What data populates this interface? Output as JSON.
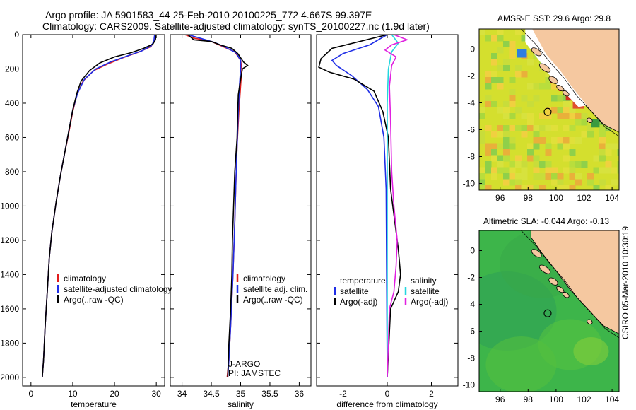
{
  "header": {
    "line1": "Argo profile: JA 5901583_44 25-Feb-2010 20100225_772 4.667S 99.397E",
    "line2": "Climatology: CARS2009. Satellite-adjusted climatology: synTS_20100227.nc (1.9d later)"
  },
  "stamp": "CSIRO 05-Mar-2010 10:30:19",
  "colors": {
    "clim": "#e11b1b",
    "sat": "#1f2ee6",
    "argo": "#000000",
    "sal_sat": "#23d6df",
    "sal_argo": "#e021e0",
    "land": "#f5c8a0",
    "sst_base": "#d4df2e",
    "sla_base": "#3db54a"
  },
  "chart_data": [
    {
      "type": "line",
      "id": "temperature",
      "xlabel": "temperature",
      "ylabel": "",
      "xlim": [
        -2,
        32
      ],
      "ylim": [
        0,
        2050
      ],
      "y_reversed": true,
      "xticks": [
        0,
        10,
        20,
        30
      ],
      "yticks": [
        0,
        200,
        400,
        600,
        800,
        1000,
        1200,
        1400,
        1600,
        1800,
        2000
      ],
      "legend": [
        "climatology",
        "satellite-adjusted climatology",
        "Argo(..raw -QC)"
      ],
      "series": [
        {
          "name": "climatology",
          "color": "clim",
          "points": [
            [
              29.8,
              0
            ],
            [
              29.5,
              40
            ],
            [
              28.7,
              70
            ],
            [
              26,
              100
            ],
            [
              22,
              135
            ],
            [
              18.5,
              170
            ],
            [
              15,
              210
            ],
            [
              12.5,
              270
            ],
            [
              11,
              350
            ],
            [
              10,
              450
            ],
            [
              9,
              580
            ],
            [
              8,
              700
            ],
            [
              7,
              830
            ],
            [
              6,
              980
            ],
            [
              5,
              1150
            ],
            [
              4.4,
              1300
            ],
            [
              3.9,
              1500
            ],
            [
              3.4,
              1700
            ],
            [
              3.0,
              1900
            ],
            [
              2.7,
              2000
            ]
          ]
        },
        {
          "name": "satellite-adjusted climatology",
          "color": "sat",
          "points": [
            [
              29.6,
              0
            ],
            [
              29.4,
              40
            ],
            [
              28.8,
              65
            ],
            [
              26.5,
              95
            ],
            [
              23,
              125
            ],
            [
              19,
              160
            ],
            [
              15.5,
              200
            ],
            [
              12.8,
              260
            ],
            [
              11.2,
              340
            ],
            [
              10,
              440
            ],
            [
              9,
              570
            ],
            [
              8,
              700
            ],
            [
              7,
              830
            ],
            [
              6,
              980
            ],
            [
              5,
              1150
            ],
            [
              4.4,
              1300
            ],
            [
              3.9,
              1500
            ],
            [
              3.4,
              1700
            ],
            [
              3.0,
              1900
            ],
            [
              2.7,
              2000
            ]
          ]
        },
        {
          "name": "Argo(..raw -QC)",
          "color": "argo",
          "points": [
            [
              29.9,
              5
            ],
            [
              29.8,
              30
            ],
            [
              29.2,
              55
            ],
            [
              27,
              80
            ],
            [
              24,
              105
            ],
            [
              20,
              130
            ],
            [
              16.5,
              165
            ],
            [
              14,
              210
            ],
            [
              12,
              270
            ],
            [
              11,
              340
            ],
            [
              10,
              440
            ],
            [
              9,
              570
            ],
            [
              8,
              700
            ],
            [
              7,
              830
            ],
            [
              6,
              980
            ],
            [
              5,
              1150
            ],
            [
              4.4,
              1300
            ],
            [
              3.9,
              1500
            ],
            [
              3.4,
              1700
            ],
            [
              3.0,
              1900
            ],
            [
              2.7,
              2000
            ]
          ]
        }
      ]
    },
    {
      "type": "line",
      "id": "salinity",
      "xlabel": "salinity",
      "xlim": [
        33.8,
        36.2
      ],
      "ylim": [
        0,
        2050
      ],
      "y_reversed": true,
      "xticks": [
        34,
        34.5,
        35,
        35.5,
        36
      ],
      "legend": [
        "climatology",
        "satellite adj. clim.",
        "Argo(..raw -QC)"
      ],
      "annotations": [
        "J-ARGO",
        "PI: JAMSTEC"
      ],
      "series": [
        {
          "name": "climatology",
          "color": "clim",
          "points": [
            [
              34.05,
              0
            ],
            [
              34.2,
              20
            ],
            [
              34.5,
              40
            ],
            [
              34.7,
              70
            ],
            [
              34.9,
              100
            ],
            [
              35.0,
              150
            ],
            [
              35.02,
              200
            ],
            [
              35.0,
              300
            ],
            [
              34.97,
              450
            ],
            [
              34.94,
              650
            ],
            [
              34.92,
              850
            ],
            [
              34.9,
              1100
            ],
            [
              34.87,
              1400
            ],
            [
              34.83,
              1700
            ],
            [
              34.8,
              1900
            ],
            [
              34.77,
              2000
            ]
          ]
        },
        {
          "name": "satellite adj. clim.",
          "color": "sat",
          "points": [
            [
              34.1,
              0
            ],
            [
              34.3,
              20
            ],
            [
              34.55,
              45
            ],
            [
              34.75,
              75
            ],
            [
              34.92,
              105
            ],
            [
              35.0,
              150
            ],
            [
              35.0,
              200
            ],
            [
              34.98,
              300
            ],
            [
              34.96,
              450
            ],
            [
              34.94,
              650
            ],
            [
              34.92,
              850
            ],
            [
              34.9,
              1100
            ],
            [
              34.87,
              1400
            ],
            [
              34.83,
              1700
            ],
            [
              34.8,
              1900
            ],
            [
              34.78,
              2000
            ]
          ]
        },
        {
          "name": "Argo(..raw -QC)",
          "color": "argo",
          "points": [
            [
              34.1,
              0
            ],
            [
              34.2,
              30
            ],
            [
              34.5,
              40
            ],
            [
              34.65,
              60
            ],
            [
              34.85,
              80
            ],
            [
              34.95,
              110
            ],
            [
              35.05,
              160
            ],
            [
              35.12,
              180
            ],
            [
              35.03,
              200
            ],
            [
              35.0,
              260
            ],
            [
              34.96,
              350
            ],
            [
              34.95,
              450
            ],
            [
              34.94,
              600
            ],
            [
              34.9,
              800
            ],
            [
              34.88,
              1000
            ],
            [
              34.86,
              1200
            ],
            [
              34.85,
              1400
            ],
            [
              34.83,
              1600
            ],
            [
              34.8,
              1800
            ],
            [
              34.78,
              2000
            ]
          ]
        }
      ]
    },
    {
      "type": "line",
      "id": "difference",
      "xlabel": "difference from climatology",
      "xlim": [
        -3.2,
        3.2
      ],
      "ylim": [
        0,
        2050
      ],
      "y_reversed": true,
      "xticks": [
        -2,
        0,
        2
      ],
      "legend_left": [
        "temperature",
        "satellite",
        "Argo(-adj)"
      ],
      "legend_right": [
        "salinity",
        "satellite",
        "Argo(-adj)"
      ],
      "series": [
        {
          "name": "temperature satellite",
          "color": "sat",
          "points": [
            [
              0,
              0
            ],
            [
              -0.8,
              60
            ],
            [
              -2.0,
              110
            ],
            [
              -2.5,
              150
            ],
            [
              -2.3,
              180
            ],
            [
              -1.6,
              240
            ],
            [
              -0.9,
              320
            ],
            [
              -0.4,
              420
            ],
            [
              -0.15,
              600
            ],
            [
              -0.05,
              900
            ],
            [
              0,
              2000
            ]
          ]
        },
        {
          "name": "temperature Argo(-adj)",
          "color": "argo",
          "points": [
            [
              0,
              0
            ],
            [
              -2.5,
              80
            ],
            [
              -3.0,
              140
            ],
            [
              -3.1,
              190
            ],
            [
              -2.6,
              220
            ],
            [
              -1.5,
              260
            ],
            [
              -0.6,
              330
            ],
            [
              -0.2,
              450
            ],
            [
              0.05,
              600
            ],
            [
              0.15,
              900
            ],
            [
              0.35,
              1100
            ],
            [
              0.5,
              1250
            ],
            [
              0.6,
              1400
            ],
            [
              0.5,
              1500
            ],
            [
              0.15,
              1600
            ],
            [
              0,
              2000
            ]
          ]
        },
        {
          "name": "salinity satellite",
          "color": "sal_sat",
          "points": [
            [
              0.2,
              0
            ],
            [
              0.5,
              50
            ],
            [
              0.2,
              100
            ],
            [
              0.05,
              200
            ],
            [
              0,
              400
            ],
            [
              0,
              2000
            ]
          ]
        },
        {
          "name": "salinity Argo(-adj)",
          "color": "sal_argo",
          "points": [
            [
              0.3,
              0
            ],
            [
              0.9,
              30
            ],
            [
              0.2,
              60
            ],
            [
              -0.1,
              90
            ],
            [
              0.4,
              130
            ],
            [
              0.2,
              180
            ],
            [
              0.1,
              300
            ],
            [
              0.15,
              500
            ],
            [
              0.2,
              800
            ],
            [
              0.3,
              1000
            ],
            [
              0.45,
              1200
            ],
            [
              0.4,
              1350
            ],
            [
              0.3,
              1500
            ],
            [
              0.1,
              1600
            ],
            [
              0,
              2000
            ]
          ]
        }
      ]
    },
    {
      "type": "heatmap",
      "id": "sst_map",
      "title": "AMSR-E SST: 29.6  Argo: 29.8",
      "xlim": [
        94.5,
        104.5
      ],
      "ylim": [
        -10.5,
        1.5
      ],
      "xticks": [
        96,
        98,
        100,
        102,
        104
      ],
      "yticks": [
        0,
        -2,
        -4,
        -6,
        -8,
        -10
      ],
      "float_position": [
        99.397,
        -4.667
      ]
    },
    {
      "type": "heatmap",
      "id": "sla_map",
      "title": "Altimetric SLA: -0.044  Argo: -0.13",
      "xlim": [
        94.5,
        104.5
      ],
      "ylim": [
        -10.5,
        1.5
      ],
      "xticks": [
        96,
        98,
        100,
        102,
        104
      ],
      "yticks": [
        0,
        -2,
        -4,
        -6,
        -8,
        -10
      ],
      "float_position": [
        99.397,
        -4.667
      ]
    }
  ]
}
